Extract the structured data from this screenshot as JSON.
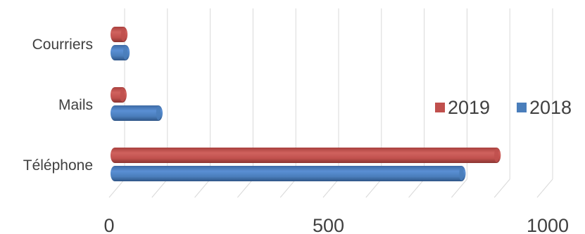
{
  "chart_data": {
    "type": "bar",
    "orientation": "horizontal",
    "style": "3d-cylinder",
    "categories": [
      "Téléphone",
      "Mails",
      "Courriers"
    ],
    "series": [
      {
        "name": "2018",
        "color": "#4a7ebb",
        "values": [
          810,
          102,
          25
        ]
      },
      {
        "name": "2019",
        "color": "#c0504d",
        "values": [
          892,
          18,
          20
        ]
      }
    ],
    "xlim": [
      0,
      1000
    ],
    "xticks": [
      "0",
      "500",
      "1000"
    ],
    "grid": true,
    "legend_position": "right",
    "legend_order": [
      "2019",
      "2018"
    ]
  }
}
